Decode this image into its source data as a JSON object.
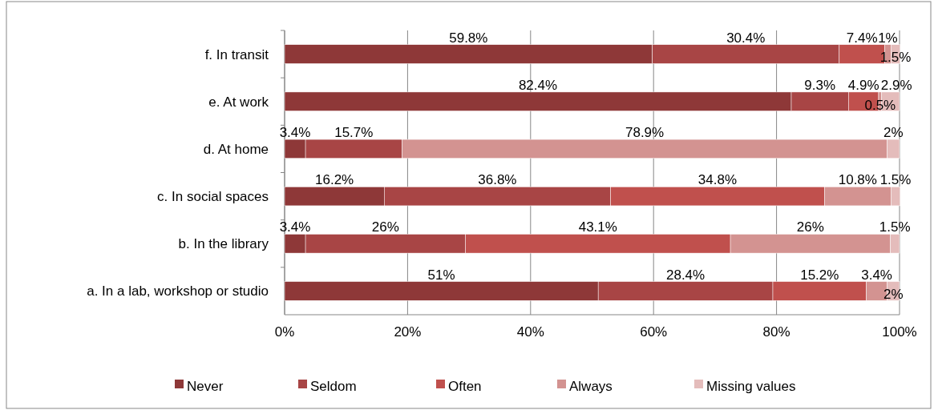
{
  "chart_data": {
    "type": "bar",
    "orientation": "horizontal",
    "stacked": true,
    "categories": [
      "f. In transit",
      "e. At work",
      "d. At home",
      "c. In social spaces",
      "b. In the library",
      "a. In a lab, workshop or studio"
    ],
    "series": [
      {
        "name": "Never",
        "color": "#8e3838",
        "values": [
          59.8,
          82.4,
          3.4,
          16.2,
          3.4,
          51
        ],
        "value_labels": [
          "59.8%",
          "82.4%",
          "3.4%",
          "16.2%",
          "3.4%",
          "51%"
        ]
      },
      {
        "name": "Seldom",
        "color": "#a84545",
        "values": [
          30.4,
          9.3,
          15.7,
          36.8,
          26,
          28.4
        ],
        "value_labels": [
          "30.4%",
          "9.3%",
          "15.7%",
          "36.8%",
          "26%",
          "28.4%"
        ]
      },
      {
        "name": "Often",
        "color": "#c0504d",
        "values": [
          7.4,
          4.9,
          null,
          34.8,
          43.1,
          15.2
        ],
        "value_labels": [
          "7.4%",
          "4.9%",
          null,
          "34.8%",
          "43.1%",
          "15.2%"
        ]
      },
      {
        "name": "Always",
        "color": "#d39391",
        "values": [
          1,
          0.5,
          78.9,
          10.8,
          26,
          3.4
        ],
        "value_labels": [
          "1%",
          "0.5%",
          "78.9%",
          "10.8%",
          "26%",
          "3.4%"
        ]
      },
      {
        "name": "Missing values",
        "color": "#e4bcbb",
        "values": [
          1.5,
          2.9,
          2,
          1.5,
          1.5,
          2
        ],
        "value_labels": [
          "1.5%",
          "2.9%",
          "2%",
          "1.5%",
          "1.5%",
          "2%"
        ]
      }
    ],
    "xlim": [
      0,
      100
    ],
    "xticks": [
      {
        "value": 0,
        "label": "0%"
      },
      {
        "value": 20,
        "label": "20%"
      },
      {
        "value": 40,
        "label": "40%"
      },
      {
        "value": 60,
        "label": "60%"
      },
      {
        "value": 80,
        "label": "80%"
      },
      {
        "value": 100,
        "label": "100%"
      }
    ],
    "grid": "x",
    "legend": "bottom"
  }
}
